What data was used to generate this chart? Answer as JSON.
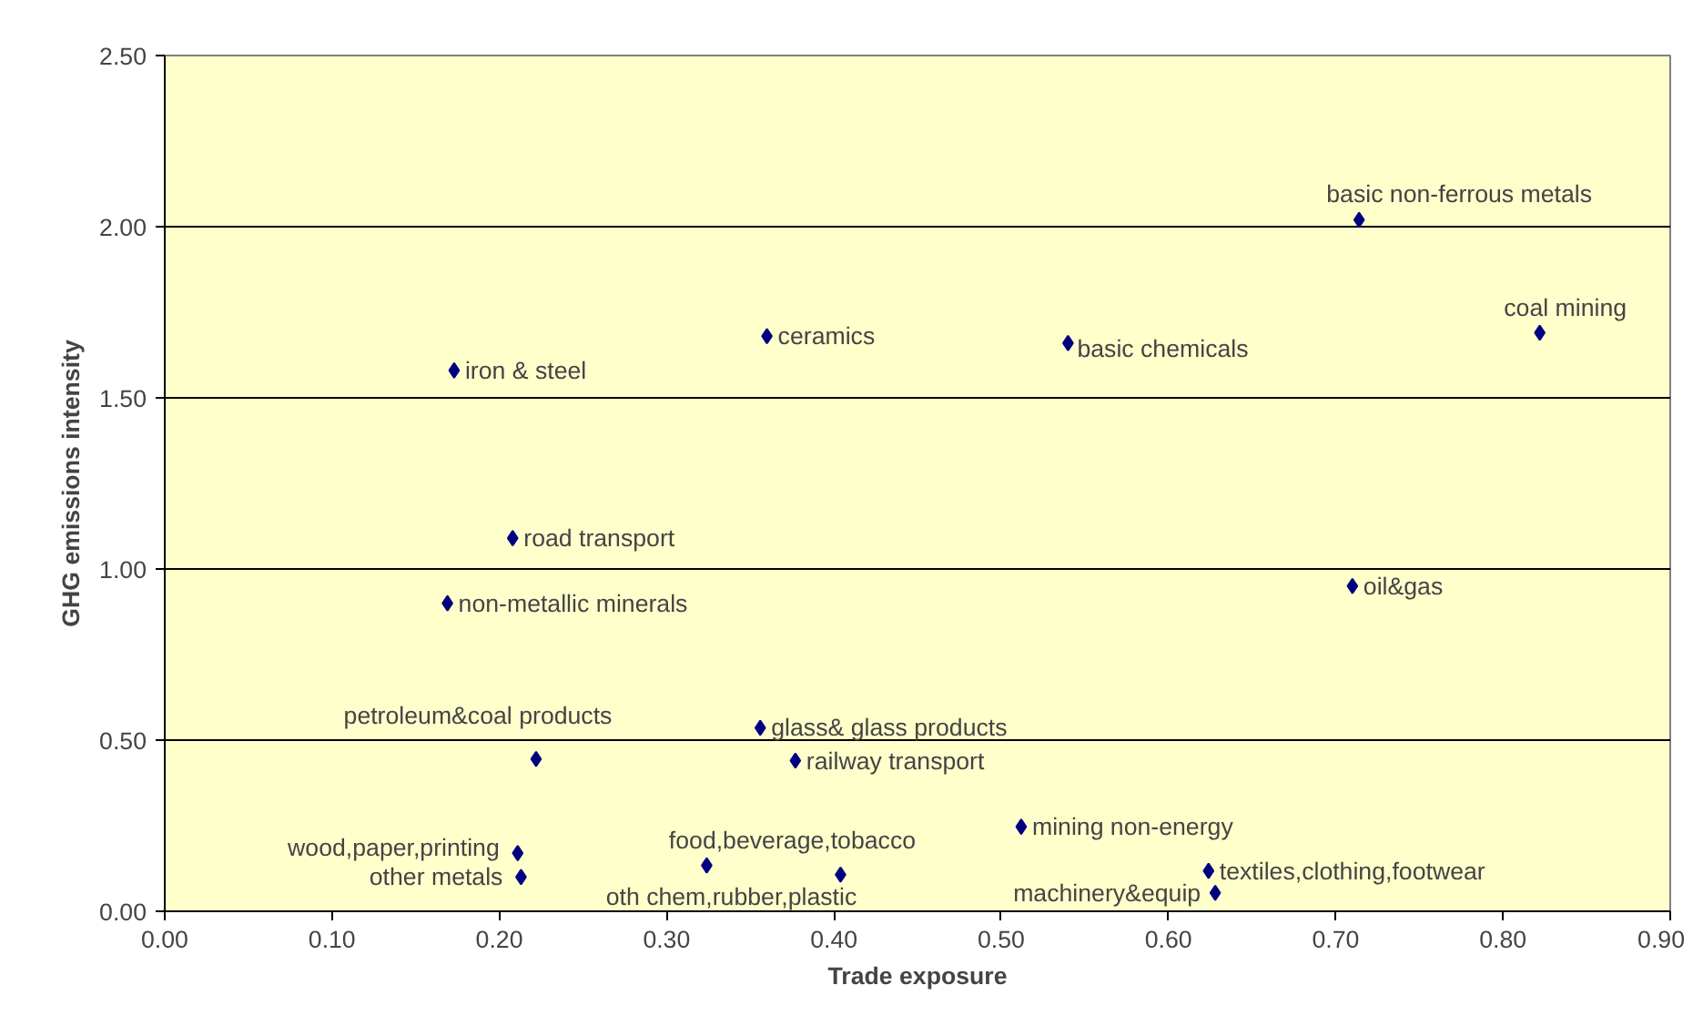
{
  "chart_data": {
    "type": "scatter",
    "xlabel": "Trade exposure",
    "ylabel": "GHG emissions intensity",
    "x": [
      0.714,
      0.822,
      0.36,
      0.54,
      0.173,
      0.208,
      0.169,
      0.71,
      0.222,
      0.356,
      0.377,
      0.211,
      0.213,
      0.324,
      0.404,
      0.512,
      0.624,
      0.628
    ],
    "values": [
      2.02,
      1.69,
      1.68,
      1.66,
      1.58,
      1.09,
      0.9,
      0.95,
      0.445,
      0.536,
      0.44,
      0.17,
      0.1,
      0.134,
      0.107,
      0.247,
      0.118,
      0.054
    ],
    "color": "#000080",
    "marker": "diamond",
    "annotations": [
      {
        "text": "basic non-ferrous metals",
        "x": 0.714,
        "y": 2.02
      },
      {
        "text": "coal mining",
        "x": 0.822,
        "y": 1.69
      },
      {
        "text": "ceramics",
        "x": 0.36,
        "y": 1.68
      },
      {
        "text": "basic chemicals",
        "x": 0.54,
        "y": 1.66
      },
      {
        "text": "iron & steel",
        "x": 0.173,
        "y": 1.58
      },
      {
        "text": "road transport",
        "x": 0.208,
        "y": 1.09
      },
      {
        "text": "non-metallic minerals",
        "x": 0.169,
        "y": 0.9
      },
      {
        "text": "oil&gas",
        "x": 0.71,
        "y": 0.95
      },
      {
        "text": "petroleum&coal products",
        "x": 0.222,
        "y": 0.445
      },
      {
        "text": "glass& glass products",
        "x": 0.356,
        "y": 0.536
      },
      {
        "text": "railway transport",
        "x": 0.377,
        "y": 0.44
      },
      {
        "text": "wood,paper,printing",
        "x": 0.211,
        "y": 0.17
      },
      {
        "text": "other metals",
        "x": 0.213,
        "y": 0.1
      },
      {
        "text": "food,beverage,tobacco",
        "x": 0.324,
        "y": 0.134
      },
      {
        "text": "oth chem,rubber,plastic",
        "x": 0.404,
        "y": 0.107
      },
      {
        "text": "mining non-energy",
        "x": 0.512,
        "y": 0.247
      },
      {
        "text": "textiles,clothing,footwear",
        "x": 0.624,
        "y": 0.118
      },
      {
        "text": "machinery&equip",
        "x": 0.628,
        "y": 0.054
      }
    ],
    "xlim": [
      0,
      0.9
    ],
    "xticks": [
      {
        "value": 0,
        "label": "0.00"
      },
      {
        "value": 0.1,
        "label": "0.10"
      },
      {
        "value": 0.2,
        "label": "0.20"
      },
      {
        "value": 0.3,
        "label": "0.30"
      },
      {
        "value": 0.4,
        "label": "0.40"
      },
      {
        "value": 0.5,
        "label": "0.50"
      },
      {
        "value": 0.6,
        "label": "0.60"
      },
      {
        "value": 0.7,
        "label": "0.70"
      },
      {
        "value": 0.8,
        "label": "0.80"
      },
      {
        "value": 0.9,
        "label": "0.90"
      }
    ],
    "ylim": [
      0,
      2.5
    ],
    "yticks": [
      {
        "value": 0,
        "label": "0.00"
      },
      {
        "value": 0.5,
        "label": "0.50"
      },
      {
        "value": 1,
        "label": "1.00"
      },
      {
        "value": 1.5,
        "label": "1.50"
      },
      {
        "value": 2,
        "label": "2.00"
      },
      {
        "value": 2.5,
        "label": "2.50"
      }
    ],
    "grid": "y"
  }
}
